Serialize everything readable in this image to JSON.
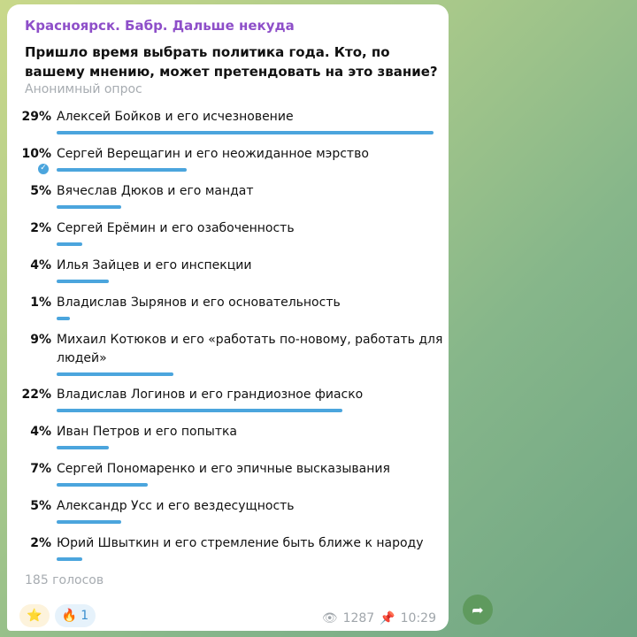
{
  "channel_name": "Красноярск. Бабр. Дальше некуда",
  "question": "Пришло время выбрать политика года. Кто, по вашему мнению, может претендовать на это звание?",
  "poll_type": "Анонимный опрос",
  "options": [
    {
      "percent": "29%",
      "value": 29,
      "label": "Алексей Бойков и его исчезновение"
    },
    {
      "percent": "10%",
      "value": 10,
      "label": "Сергей Верещагин и его неожиданное мэрство",
      "chosen": true
    },
    {
      "percent": "5%",
      "value": 5,
      "label": "Вячеслав Дюков и его мандат"
    },
    {
      "percent": "2%",
      "value": 2,
      "label": "Сергей Ерёмин и его озабоченность"
    },
    {
      "percent": "4%",
      "value": 4,
      "label": "Илья Зайцев и его инспекции"
    },
    {
      "percent": "1%",
      "value": 1,
      "label": "Владислав Зырянов и его основательность"
    },
    {
      "percent": "9%",
      "value": 9,
      "label": "Михаил Котюков и его «работать по-новому, работать для людей»"
    },
    {
      "percent": "22%",
      "value": 22,
      "label": "Владислав Логинов и его грандиозное фиаско"
    },
    {
      "percent": "4%",
      "value": 4,
      "label": "Иван Петров и его попытка"
    },
    {
      "percent": "7%",
      "value": 7,
      "label": "Сергей Пономаренко и его эпичные высказывания"
    },
    {
      "percent": "5%",
      "value": 5,
      "label": "Александр Усс и его вездесущность"
    },
    {
      "percent": "2%",
      "value": 2,
      "label": "Юрий Швыткин и его стремление быть ближе к народу"
    }
  ],
  "votes": "185 голосов",
  "reactions": [
    {
      "emoji": "⭐",
      "count": ""
    },
    {
      "emoji": "🔥",
      "count": "1"
    }
  ],
  "views": "1287",
  "time": "10:29",
  "icons": {
    "views": "eye-icon",
    "pinned": "pin-icon",
    "share": "share-icon",
    "chosen": "check-icon"
  },
  "colors": {
    "accent": "#4ba5dd",
    "channel": "#8e4fc9"
  }
}
